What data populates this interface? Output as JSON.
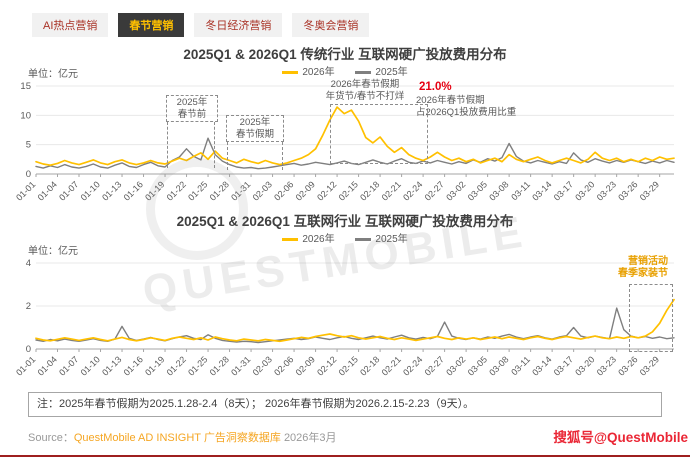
{
  "tabs": [
    {
      "label": "AI热点营销",
      "active": false
    },
    {
      "label": "春节营销",
      "active": true
    },
    {
      "label": "冬日经济营销",
      "active": false
    },
    {
      "label": "冬奥会营销",
      "active": false
    }
  ],
  "colors": {
    "accent_yellow": "#FFC000",
    "series_gray": "#7F7F7F",
    "ratio_red": "#E60012",
    "tab_active_bg": "#3A3A3A",
    "tab_active_text": "#FFC000",
    "tab_inactive_bg": "#F1F1F1",
    "tab_inactive_text": "#A93226",
    "source_orange": "#F5A623",
    "annotation_orange": "#E8A000"
  },
  "chart_data": [
    {
      "type": "line",
      "title": "2025Q1 & 2026Q1 传统行业 互联网硬广投放费用分布",
      "unit_label": "单位：亿元",
      "ylim": [
        0,
        15
      ],
      "yticks": [
        0,
        5,
        10,
        15
      ],
      "grid": "horizontal",
      "legend_position": "top-center",
      "x_label_step": 3,
      "x_labels": [
        "01-01",
        "01-04",
        "01-07",
        "01-10",
        "01-13",
        "01-16",
        "01-19",
        "01-22",
        "01-25",
        "01-28",
        "01-31",
        "02-03",
        "02-06",
        "02-09",
        "02-12",
        "02-15",
        "02-18",
        "02-21",
        "02-24",
        "02-27",
        "03-02",
        "03-05",
        "03-08",
        "03-11",
        "03-14",
        "03-17",
        "03-20",
        "03-23",
        "03-26",
        "03-29"
      ],
      "series": [
        {
          "name": "2026年",
          "color": "#FFC000",
          "stroke_width": 1.7,
          "values": [
            2.1,
            1.7,
            1.5,
            1.8,
            2.3,
            1.9,
            1.6,
            2.0,
            2.4,
            1.9,
            1.6,
            2.1,
            2.4,
            1.9,
            1.6,
            1.9,
            2.3,
            1.9,
            1.7,
            2.2,
            2.7,
            2.3,
            3.0,
            3.6,
            2.5,
            3.9,
            2.7,
            2.3,
            1.9,
            2.5,
            2.1,
            1.8,
            2.3,
            1.9,
            1.6,
            1.9,
            2.3,
            2.7,
            3.3,
            4.3,
            6.6,
            9.2,
            11.4,
            10.3,
            10.9,
            9.0,
            6.2,
            5.3,
            6.3,
            4.7,
            3.7,
            4.5,
            3.3,
            2.7,
            2.3,
            2.9,
            3.7,
            2.9,
            2.3,
            2.7,
            2.1,
            2.5,
            1.9,
            2.3,
            2.7,
            2.1,
            3.3,
            2.5,
            2.1,
            2.5,
            2.9,
            2.3,
            1.9,
            2.3,
            2.7,
            2.3,
            1.9,
            2.5,
            3.7,
            2.7,
            2.3,
            2.7,
            2.1,
            2.5,
            2.1,
            2.7,
            2.3,
            2.9,
            2.5,
            2.7
          ]
        },
        {
          "name": "2025年",
          "color": "#7F7F7F",
          "stroke_width": 1.4,
          "values": [
            1.3,
            1.0,
            1.4,
            1.1,
            1.6,
            1.2,
            1.0,
            1.3,
            1.7,
            1.2,
            1.0,
            1.5,
            1.9,
            1.3,
            1.1,
            1.6,
            2.0,
            1.4,
            1.2,
            2.3,
            2.9,
            4.3,
            3.0,
            2.4,
            6.1,
            3.3,
            2.2,
            1.6,
            1.2,
            1.0,
            1.1,
            0.9,
            1.0,
            1.2,
            1.4,
            1.6,
            1.8,
            1.5,
            1.7,
            2.0,
            1.8,
            1.6,
            1.9,
            2.2,
            1.8,
            1.6,
            2.0,
            2.4,
            2.0,
            1.7,
            2.2,
            2.6,
            2.0,
            1.8,
            2.2,
            1.9,
            2.3,
            2.0,
            1.7,
            2.1,
            1.8,
            2.4,
            2.0,
            2.6,
            2.2,
            2.8,
            5.2,
            3.0,
            2.2,
            1.9,
            2.3,
            2.0,
            1.7,
            2.1,
            1.8,
            3.6,
            2.4,
            2.0,
            2.6,
            2.2,
            1.9,
            2.3,
            2.0,
            2.4,
            2.1,
            1.8,
            2.2,
            1.9,
            2.3,
            2.0
          ]
        }
      ],
      "annotations": {
        "pre_cny": {
          "lines": [
            "2025年",
            "春节前"
          ]
        },
        "cny_2025": {
          "lines": [
            "2025年",
            "春节假期"
          ]
        },
        "cny_2026": {
          "lines": [
            "2026年春节假期",
            "年货节/春节不打烊"
          ]
        },
        "ratio": {
          "value": "21.0%",
          "lines": [
            "2026年春节假期",
            "占2026Q1投放费用比重"
          ]
        }
      }
    },
    {
      "type": "line",
      "title": "2025Q1 & 2026Q1 互联网行业 互联网硬广投放费用分布",
      "unit_label": "单位：亿元",
      "ylim": [
        0,
        4
      ],
      "yticks": [
        0,
        2,
        4
      ],
      "grid": "horizontal",
      "legend_position": "top-center",
      "x_label_step": 3,
      "x_labels": [
        "01-01",
        "01-04",
        "01-07",
        "01-10",
        "01-13",
        "01-16",
        "01-19",
        "01-22",
        "01-25",
        "01-28",
        "01-31",
        "02-03",
        "02-06",
        "02-09",
        "02-12",
        "02-15",
        "02-18",
        "02-21",
        "02-24",
        "02-27",
        "03-02",
        "03-05",
        "03-08",
        "03-11",
        "03-14",
        "03-17",
        "03-20",
        "03-23",
        "03-26",
        "03-29"
      ],
      "series": [
        {
          "name": "2026年",
          "color": "#FFC000",
          "stroke_width": 1.7,
          "values": [
            0.5,
            0.42,
            0.38,
            0.45,
            0.52,
            0.46,
            0.4,
            0.46,
            0.52,
            0.44,
            0.38,
            0.46,
            0.54,
            0.44,
            0.38,
            0.44,
            0.52,
            0.46,
            0.4,
            0.5,
            0.56,
            0.5,
            0.44,
            0.52,
            0.42,
            0.56,
            0.48,
            0.42,
            0.38,
            0.46,
            0.42,
            0.38,
            0.44,
            0.4,
            0.36,
            0.42,
            0.48,
            0.54,
            0.5,
            0.58,
            0.64,
            0.7,
            0.62,
            0.56,
            0.62,
            0.52,
            0.46,
            0.52,
            0.58,
            0.5,
            0.44,
            0.52,
            0.46,
            0.4,
            0.46,
            0.52,
            0.58,
            0.5,
            0.44,
            0.52,
            0.46,
            0.52,
            0.44,
            0.5,
            0.56,
            0.48,
            0.56,
            0.5,
            0.44,
            0.52,
            0.58,
            0.5,
            0.44,
            0.52,
            0.58,
            0.52,
            0.46,
            0.54,
            0.6,
            0.52,
            0.48,
            0.56,
            0.5,
            0.58,
            0.52,
            0.6,
            0.8,
            1.2,
            1.8,
            2.3
          ]
        },
        {
          "name": "2025年",
          "color": "#7F7F7F",
          "stroke_width": 1.4,
          "values": [
            0.42,
            0.36,
            0.44,
            0.38,
            0.46,
            0.4,
            0.36,
            0.42,
            0.48,
            0.4,
            0.36,
            0.46,
            1.05,
            0.5,
            0.4,
            0.46,
            0.54,
            0.44,
            0.38,
            0.48,
            0.56,
            0.62,
            0.5,
            0.44,
            0.66,
            0.5,
            0.4,
            0.36,
            0.32,
            0.36,
            0.34,
            0.3,
            0.34,
            0.38,
            0.42,
            0.46,
            0.5,
            0.44,
            0.48,
            0.56,
            0.5,
            0.44,
            0.52,
            0.58,
            0.5,
            0.44,
            0.52,
            0.6,
            0.52,
            0.46,
            0.56,
            0.64,
            0.52,
            0.46,
            0.54,
            0.48,
            0.58,
            1.25,
            0.6,
            0.5,
            0.44,
            0.52,
            0.46,
            0.56,
            0.5,
            0.6,
            0.68,
            0.56,
            0.48,
            0.56,
            0.62,
            0.52,
            0.46,
            0.56,
            0.62,
            1.0,
            0.6,
            0.52,
            0.6,
            0.54,
            0.48,
            1.9,
            0.9,
            0.6,
            0.52,
            0.58,
            0.5,
            0.56,
            0.48,
            0.52
          ]
        }
      ],
      "annotations": {
        "campaign": {
          "lines": [
            "营销活动",
            "春季家装节"
          ]
        }
      }
    }
  ],
  "note": "注：2025年春节假期为2025.1.28-2.4（8天）； 2026年春节假期为2026.2.15-2.23（9天）。",
  "source": {
    "prefix": "Source：",
    "product": "QuestMobile AD INSIGHT 广告洞察数据库",
    "date": "2026年3月"
  },
  "watermark": {
    "diagonal": "QUESTMOBILE",
    "account": "搜狐号@QuestMobile"
  }
}
